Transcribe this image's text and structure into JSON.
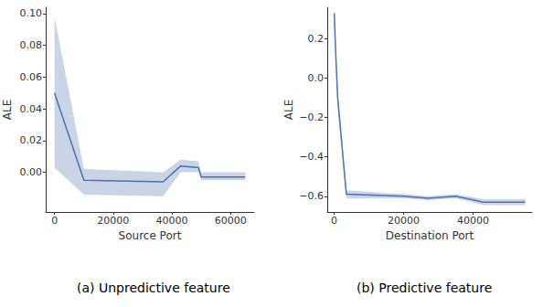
{
  "chart_data": [
    {
      "type": "line",
      "caption": "(a) Unpredictive feature",
      "xlabel": "Source Port",
      "ylabel": "ALE",
      "color": "#4c72b0",
      "grid": false,
      "x": [
        0,
        10000,
        37000,
        43000,
        49000,
        50000,
        65000
      ],
      "values": [
        0.05,
        -0.005,
        -0.006,
        0.004,
        0.003,
        -0.003,
        -0.003
      ],
      "lower": [
        0.003,
        -0.014,
        -0.015,
        0.0,
        0.0,
        -0.005,
        -0.005
      ],
      "upper": [
        0.098,
        0.002,
        0.0,
        0.008,
        0.007,
        0.0,
        0.0
      ],
      "xlim": [
        -3000,
        68000
      ],
      "ylim": [
        -0.025,
        0.104
      ],
      "xticks": [
        0,
        20000,
        40000,
        60000
      ],
      "yticks": [
        {
          "value": 0,
          "label": "0.00"
        },
        {
          "value": 0.02,
          "label": "0.02"
        },
        {
          "value": 0.04,
          "label": "0.04"
        },
        {
          "value": 0.06,
          "label": "0.06"
        },
        {
          "value": 0.08,
          "label": "0.08"
        },
        {
          "value": 0.1,
          "label": "0.10"
        }
      ]
    },
    {
      "type": "line",
      "caption": "(b) Predictive feature",
      "xlabel": "Destination Port",
      "ylabel": "ALE",
      "color": "#4c72b0",
      "grid": false,
      "x": [
        0,
        500,
        1000,
        3500,
        20000,
        27000,
        35000,
        43000,
        55000
      ],
      "values": [
        0.33,
        0.1,
        -0.1,
        -0.59,
        -0.6,
        -0.61,
        -0.6,
        -0.63,
        -0.63
      ],
      "lower": [
        0.3,
        0.06,
        -0.14,
        -0.61,
        -0.61,
        -0.62,
        -0.61,
        -0.645,
        -0.645
      ],
      "upper": [
        0.36,
        0.14,
        -0.06,
        -0.57,
        -0.59,
        -0.6,
        -0.59,
        -0.615,
        -0.615
      ],
      "xlim": [
        -2000,
        57000
      ],
      "ylim": [
        -0.68,
        0.36
      ],
      "xticks": [
        0,
        20000,
        40000
      ],
      "yticks": [
        {
          "value": -0.6,
          "label": "−0.6"
        },
        {
          "value": -0.4,
          "label": "−0.4"
        },
        {
          "value": -0.2,
          "label": "−0.2"
        },
        {
          "value": 0,
          "label": "0.0"
        },
        {
          "value": 0.2,
          "label": "0.2"
        }
      ]
    }
  ]
}
